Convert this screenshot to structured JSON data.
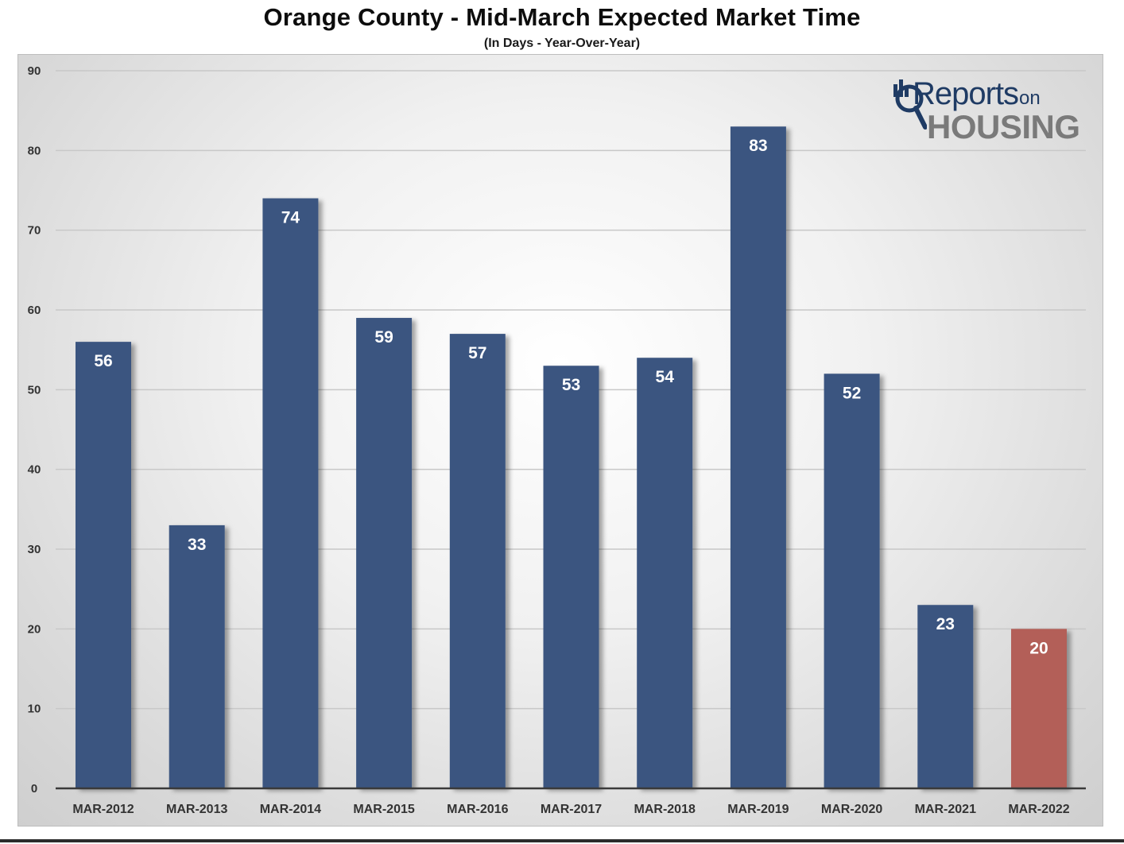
{
  "chart_data": {
    "type": "bar",
    "title": "Orange County - Mid-March Expected Market Time",
    "subtitle": "(In Days - Year-Over-Year)",
    "xlabel": "",
    "ylabel": "",
    "categories": [
      "MAR-2012",
      "MAR-2013",
      "MAR-2014",
      "MAR-2015",
      "MAR-2016",
      "MAR-2017",
      "MAR-2018",
      "MAR-2019",
      "MAR-2020",
      "MAR-2021",
      "MAR-2022"
    ],
    "values": [
      56,
      33,
      74,
      59,
      57,
      53,
      54,
      83,
      52,
      23,
      20
    ],
    "data_labels": [
      "56",
      "33",
      "74",
      "59",
      "57",
      "53",
      "54",
      "83",
      "52",
      "23",
      "20"
    ],
    "ylim": [
      0,
      90
    ],
    "yticks": [
      0,
      10,
      20,
      30,
      40,
      50,
      60,
      70,
      80,
      90
    ],
    "ytick_labels": [
      "0",
      "10",
      "20",
      "30",
      "40",
      "50",
      "60",
      "70",
      "80",
      "90"
    ],
    "grid": true,
    "legend": "none",
    "colors": {
      "bar": "#3a5580",
      "highlight_bar": "#b35e58",
      "data_label": "#ffffff",
      "gridline": "#c8c8c8",
      "axis": "#3a3a3a",
      "tick_label": "#333333"
    },
    "highlight_index": 10
  },
  "logo": {
    "reports": "Reports",
    "on": "on",
    "housing": "HOUSING"
  }
}
